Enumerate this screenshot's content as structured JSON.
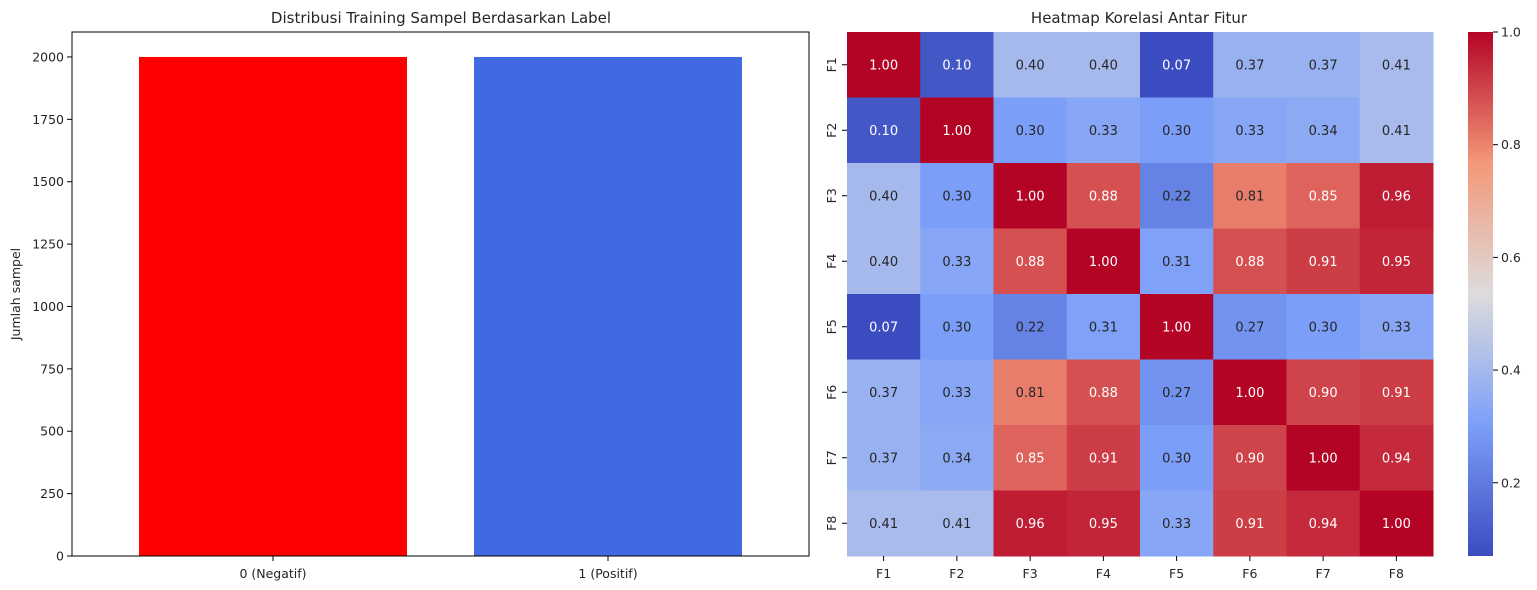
{
  "chart_data": [
    {
      "type": "bar",
      "title": "Distribusi Training Sampel Berdasarkan Label",
      "xlabel": "",
      "ylabel": "Jumlah sampel",
      "categories": [
        "0 (Negatif)",
        "1 (Positif)"
      ],
      "values": [
        2000,
        2000
      ],
      "colors": [
        "#ff0000",
        "#4169e1"
      ],
      "ylim": [
        0,
        2100
      ],
      "yticks": [
        0,
        250,
        500,
        750,
        1000,
        1250,
        1500,
        1750,
        2000
      ],
      "grid": false
    },
    {
      "type": "heatmap",
      "title": "Heatmap Korelasi Antar Fitur",
      "colormap": "coolwarm",
      "x_labels": [
        "F1",
        "F2",
        "F3",
        "F4",
        "F5",
        "F6",
        "F7",
        "F8"
      ],
      "y_labels": [
        "F1",
        "F2",
        "F3",
        "F4",
        "F5",
        "F6",
        "F7",
        "F8"
      ],
      "values": [
        [
          1.0,
          0.1,
          0.4,
          0.4,
          0.07,
          0.37,
          0.37,
          0.41
        ],
        [
          0.1,
          1.0,
          0.3,
          0.33,
          0.3,
          0.33,
          0.34,
          0.41
        ],
        [
          0.4,
          0.3,
          1.0,
          0.88,
          0.22,
          0.81,
          0.85,
          0.96
        ],
        [
          0.4,
          0.33,
          0.88,
          1.0,
          0.31,
          0.88,
          0.91,
          0.95
        ],
        [
          0.07,
          0.3,
          0.22,
          0.31,
          1.0,
          0.27,
          0.3,
          0.33
        ],
        [
          0.37,
          0.33,
          0.81,
          0.88,
          0.27,
          1.0,
          0.9,
          0.91
        ],
        [
          0.37,
          0.34,
          0.85,
          0.91,
          0.3,
          0.9,
          1.0,
          0.94
        ],
        [
          0.41,
          0.41,
          0.96,
          0.95,
          0.33,
          0.91,
          0.94,
          1.0
        ]
      ],
      "annotation_format": "0.00",
      "colorbar": {
        "range": [
          0.07,
          1.0
        ],
        "ticks": [
          0.2,
          0.4,
          0.6,
          0.8,
          1.0
        ],
        "tick_labels": [
          "0.2",
          "0.4",
          "0.6",
          "0.8",
          "1.0"
        ]
      }
    }
  ]
}
